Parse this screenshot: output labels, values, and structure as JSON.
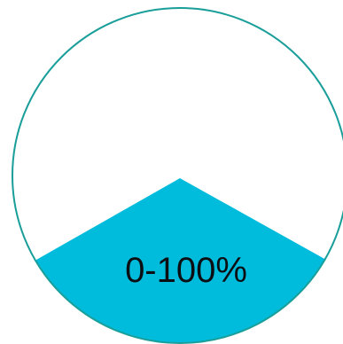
{
  "gauge": {
    "label": "0-100%",
    "colors": {
      "outline": "#1a9e9a",
      "fill": "#00bcdc",
      "background": "#ffffff",
      "text": "#0b0f14"
    }
  }
}
